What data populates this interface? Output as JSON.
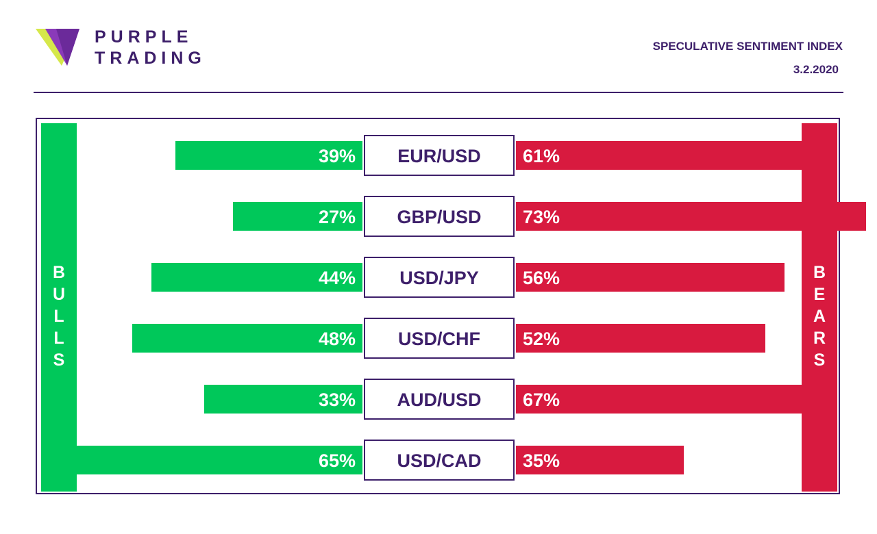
{
  "brand": {
    "line1": "PURPLE",
    "line2": "TRADING",
    "logo_icon": "purple-trading-triangle-logo"
  },
  "header": {
    "title": "SPECULATIVE SENTIMENT INDEX",
    "date": "3.2.2020"
  },
  "colors": {
    "bulls": "#00c85a",
    "bears": "#d81a3f",
    "brand_purple": "#3d1f6a",
    "label_text": "#3d1f6a"
  },
  "chart_data": {
    "type": "bar",
    "title": "",
    "categories": [
      "EUR/USD",
      "GBP/USD",
      "USD/JPY",
      "USD/CHF",
      "AUD/USD",
      "USD/CAD"
    ],
    "series": [
      {
        "name": "BULLS",
        "values": [
          39,
          27,
          44,
          48,
          33,
          65
        ],
        "labels": [
          "39%",
          "27%",
          "44%",
          "48%",
          "33%",
          "65%"
        ]
      },
      {
        "name": "BEARS",
        "values": [
          61,
          73,
          56,
          52,
          67,
          35
        ],
        "labels": [
          "61%",
          "73%",
          "56%",
          "52%",
          "67%",
          "35%"
        ]
      }
    ],
    "unit": "%",
    "xlim": [
      0,
      100
    ],
    "grid": false,
    "legend": "side bars: left BULLS, right BEARS"
  }
}
